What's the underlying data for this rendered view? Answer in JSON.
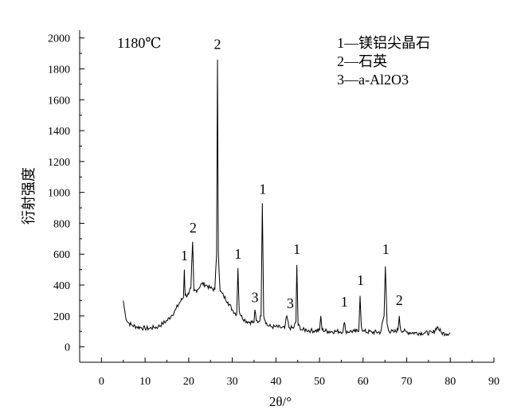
{
  "chart_data": {
    "type": "line",
    "xlabel": "2θ/°",
    "ylabel": "衍射强度",
    "annotation": "1180℃",
    "xlim": [
      -5,
      90
    ],
    "ylim": [
      -100,
      2050
    ],
    "xticks": [
      0,
      10,
      20,
      30,
      40,
      50,
      60,
      70,
      80,
      90
    ],
    "yticks": [
      0,
      200,
      400,
      600,
      800,
      1000,
      1200,
      1400,
      1600,
      1800,
      2000
    ],
    "grid": false,
    "legend": {
      "placement": "top-right",
      "entries": [
        "1—镁铝尖晶石",
        "2—石英",
        "3—a-Al2O3"
      ]
    },
    "peak_labels": [
      {
        "text": "1",
        "x": 19.0,
        "y": 560
      },
      {
        "text": "2",
        "x": 21.0,
        "y": 740
      },
      {
        "text": "2",
        "x": 26.6,
        "y": 1930
      },
      {
        "text": "1",
        "x": 31.3,
        "y": 570
      },
      {
        "text": "3",
        "x": 35.2,
        "y": 290
      },
      {
        "text": "1",
        "x": 37.0,
        "y": 990
      },
      {
        "text": "3",
        "x": 43.3,
        "y": 250
      },
      {
        "text": "1",
        "x": 44.8,
        "y": 600
      },
      {
        "text": "1",
        "x": 55.7,
        "y": 260
      },
      {
        "text": "1",
        "x": 59.4,
        "y": 400
      },
      {
        "text": "1",
        "x": 65.2,
        "y": 600
      },
      {
        "text": "2",
        "x": 68.3,
        "y": 270
      }
    ],
    "series": [
      {
        "x": [
          5,
          5.5,
          6,
          7,
          8,
          9,
          10,
          11,
          12,
          13,
          14,
          15,
          16,
          17,
          18,
          18.8,
          19.0,
          19.2,
          20,
          20.5,
          20.9,
          21.2,
          22,
          23,
          24,
          25,
          26,
          26.4,
          26.6,
          26.8,
          27.2,
          28,
          29,
          30,
          31,
          31.3,
          31.6,
          32,
          33,
          34,
          35,
          35.2,
          35.5,
          36,
          36.6,
          36.9,
          37.2,
          38,
          39,
          40,
          41,
          42,
          42.5,
          43,
          44,
          44.6,
          44.8,
          45.1,
          46,
          47,
          48,
          49,
          50,
          50.3,
          50.6,
          52,
          54,
          55.4,
          55.7,
          56,
          57,
          58,
          59,
          59.3,
          59.6,
          60,
          62,
          64,
          64.8,
          65.1,
          65.5,
          66,
          67,
          68,
          68.3,
          68.6,
          70,
          72,
          74,
          76,
          77,
          78,
          79,
          80
        ],
        "y": [
          300,
          200,
          160,
          140,
          130,
          125,
          120,
          120,
          125,
          130,
          150,
          170,
          200,
          240,
          290,
          320,
          500,
          330,
          340,
          380,
          680,
          360,
          370,
          410,
          400,
          380,
          370,
          600,
          1860,
          600,
          360,
          330,
          290,
          240,
          210,
          510,
          230,
          200,
          170,
          160,
          160,
          240,
          170,
          160,
          200,
          930,
          200,
          140,
          130,
          130,
          125,
          120,
          200,
          125,
          120,
          160,
          530,
          140,
          110,
          110,
          105,
          105,
          105,
          200,
          110,
          100,
          100,
          100,
          160,
          100,
          100,
          100,
          100,
          330,
          130,
          100,
          95,
          95,
          200,
          520,
          150,
          100,
          95,
          110,
          200,
          110,
          95,
          90,
          90,
          90,
          130,
          90,
          85,
          90
        ]
      }
    ]
  }
}
